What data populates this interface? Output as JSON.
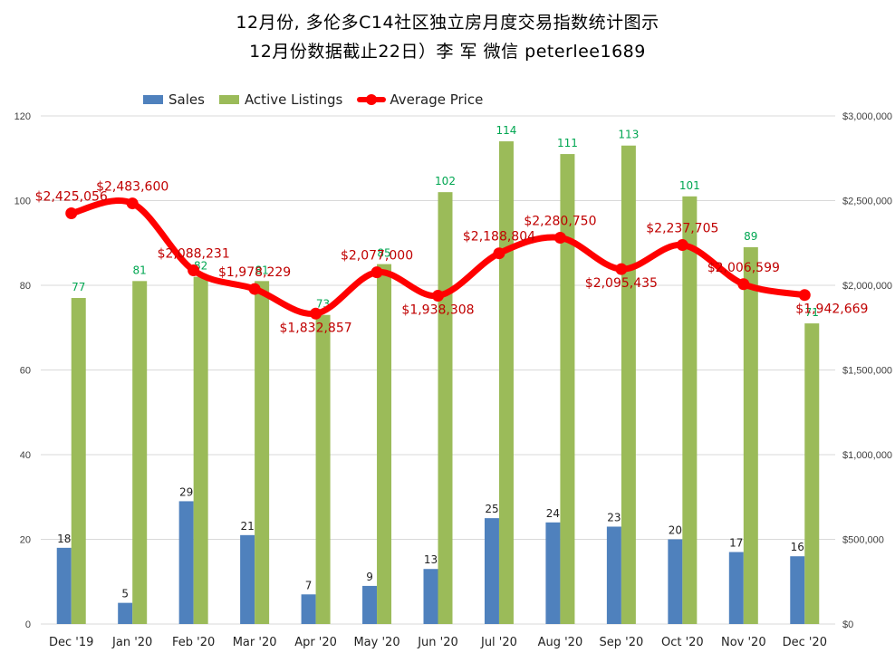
{
  "chart_data": {
    "type": "bar",
    "title": "12月份, 多伦多C14社区独立房月度交易指数统计图示",
    "subtitle": "12月份数据截止22日）李 军  微信  peterlee1689",
    "categories": [
      "Dec '19",
      "Jan '20",
      "Feb '20",
      "Mar '20",
      "Apr '20",
      "May '20",
      "Jun '20",
      "Jul '20",
      "Aug '20",
      "Sep '20",
      "Oct '20",
      "Nov '20",
      "Dec '20"
    ],
    "series": [
      {
        "name": "Sales",
        "type": "bar",
        "axis": "left",
        "color": "#4f81bd",
        "values": [
          18,
          5,
          29,
          21,
          7,
          9,
          13,
          25,
          24,
          23,
          20,
          17,
          16
        ],
        "labels": [
          "18",
          "5",
          "29",
          "21",
          "7",
          "9",
          "13",
          "25",
          "24",
          "23",
          "20",
          "17",
          "16"
        ]
      },
      {
        "name": "Active Listings",
        "type": "bar",
        "axis": "left",
        "color": "#9bbb59",
        "values": [
          77,
          81,
          82,
          81,
          73,
          85,
          102,
          114,
          111,
          113,
          101,
          89,
          71
        ],
        "labels": [
          "77",
          "81",
          "82",
          "81",
          "73",
          "85",
          "102",
          "114",
          "111",
          "113",
          "101",
          "89",
          "71"
        ]
      },
      {
        "name": "Average Price",
        "type": "line",
        "axis": "right",
        "color": "#ff0000",
        "values": [
          2425056,
          2483600,
          2088231,
          1978229,
          1832857,
          2077000,
          1938308,
          2188804,
          2280750,
          2095435,
          2237705,
          2006599,
          1942669
        ],
        "labels": [
          "$2,425,056",
          "$2,483,600",
          "$2,088,231",
          "$1,978,229",
          "$1,832,857",
          "$2,077,000",
          "$1,938,308",
          "$2,188,804",
          "$2,280,750",
          "$2,095,435",
          "$2,237,705",
          "$2,006,599",
          "$1,942,669"
        ]
      }
    ],
    "left_axis": {
      "min": 0,
      "max": 120,
      "ticks": [
        "0",
        "20",
        "40",
        "60",
        "80",
        "100",
        "120"
      ]
    },
    "right_axis": {
      "min": 0,
      "max": 3000000,
      "ticks": [
        "$0",
        "$500,000",
        "$1,000,000",
        "$1,500,000",
        "$2,000,000",
        "$2,500,000",
        "$3,000,000"
      ]
    },
    "legend_position": "top-left",
    "grid": true
  },
  "colors": {
    "sales": "#4f81bd",
    "listings": "#9bbb59",
    "price": "#ff0000",
    "listings_label": "#00a651",
    "price_label": "#c00000",
    "grid": "#d9d9d9"
  }
}
